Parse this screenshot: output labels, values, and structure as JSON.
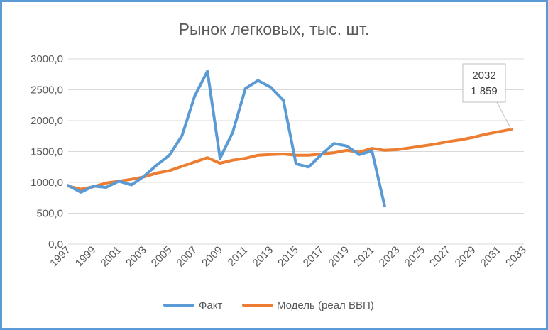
{
  "chart_data": {
    "type": "line",
    "title": "Рынок легковых, тыс. шт.",
    "xlabel": "",
    "ylabel": "",
    "xlim": [
      1997,
      2033
    ],
    "ylim": [
      0,
      3000
    ],
    "y_ticks": [
      "0,0",
      "500,0",
      "1000,0",
      "1500,0",
      "2000,0",
      "2500,0",
      "3000,0"
    ],
    "x_ticks": [
      "1997",
      "1999",
      "2001",
      "2003",
      "2005",
      "2007",
      "2009",
      "2011",
      "2013",
      "2015",
      "2017",
      "2019",
      "2021",
      "2023",
      "2025",
      "2027",
      "2029",
      "2031",
      "2033"
    ],
    "grid": true,
    "legend_position": "bottom",
    "series": [
      {
        "name": "Факт",
        "color": "#5b9bd5",
        "x": [
          1997,
          1998,
          1999,
          2000,
          2001,
          2002,
          2003,
          2004,
          2005,
          2006,
          2007,
          2008,
          2009,
          2010,
          2011,
          2012,
          2013,
          2014,
          2015,
          2016,
          2017,
          2018,
          2019,
          2020,
          2021,
          2022
        ],
        "values": [
          950,
          840,
          940,
          920,
          1020,
          960,
          1100,
          1280,
          1440,
          1760,
          2400,
          2800,
          1390,
          1810,
          2520,
          2650,
          2540,
          2330,
          1300,
          1250,
          1450,
          1630,
          1590,
          1450,
          1510,
          620
        ]
      },
      {
        "name": "Модель (реал ВВП)",
        "color": "#ed7d31",
        "x": [
          1997,
          1998,
          1999,
          2000,
          2001,
          2002,
          2003,
          2004,
          2005,
          2006,
          2007,
          2008,
          2009,
          2010,
          2011,
          2012,
          2013,
          2014,
          2015,
          2016,
          2017,
          2018,
          2019,
          2020,
          2021,
          2022,
          2023,
          2024,
          2025,
          2026,
          2027,
          2028,
          2029,
          2030,
          2031,
          2032
        ],
        "values": [
          940,
          890,
          930,
          990,
          1020,
          1050,
          1090,
          1150,
          1190,
          1260,
          1330,
          1400,
          1310,
          1360,
          1390,
          1440,
          1450,
          1460,
          1440,
          1440,
          1460,
          1480,
          1520,
          1490,
          1550,
          1520,
          1530,
          1560,
          1590,
          1620,
          1660,
          1690,
          1730,
          1780,
          1820,
          1859
        ]
      }
    ],
    "annotation": {
      "x": 2032,
      "line1": "2032",
      "line2": "1 859",
      "series": "Модель (реал ВВП)"
    }
  },
  "legend": {
    "fact_label": "Факт",
    "model_label": "Модель (реал ВВП)"
  }
}
